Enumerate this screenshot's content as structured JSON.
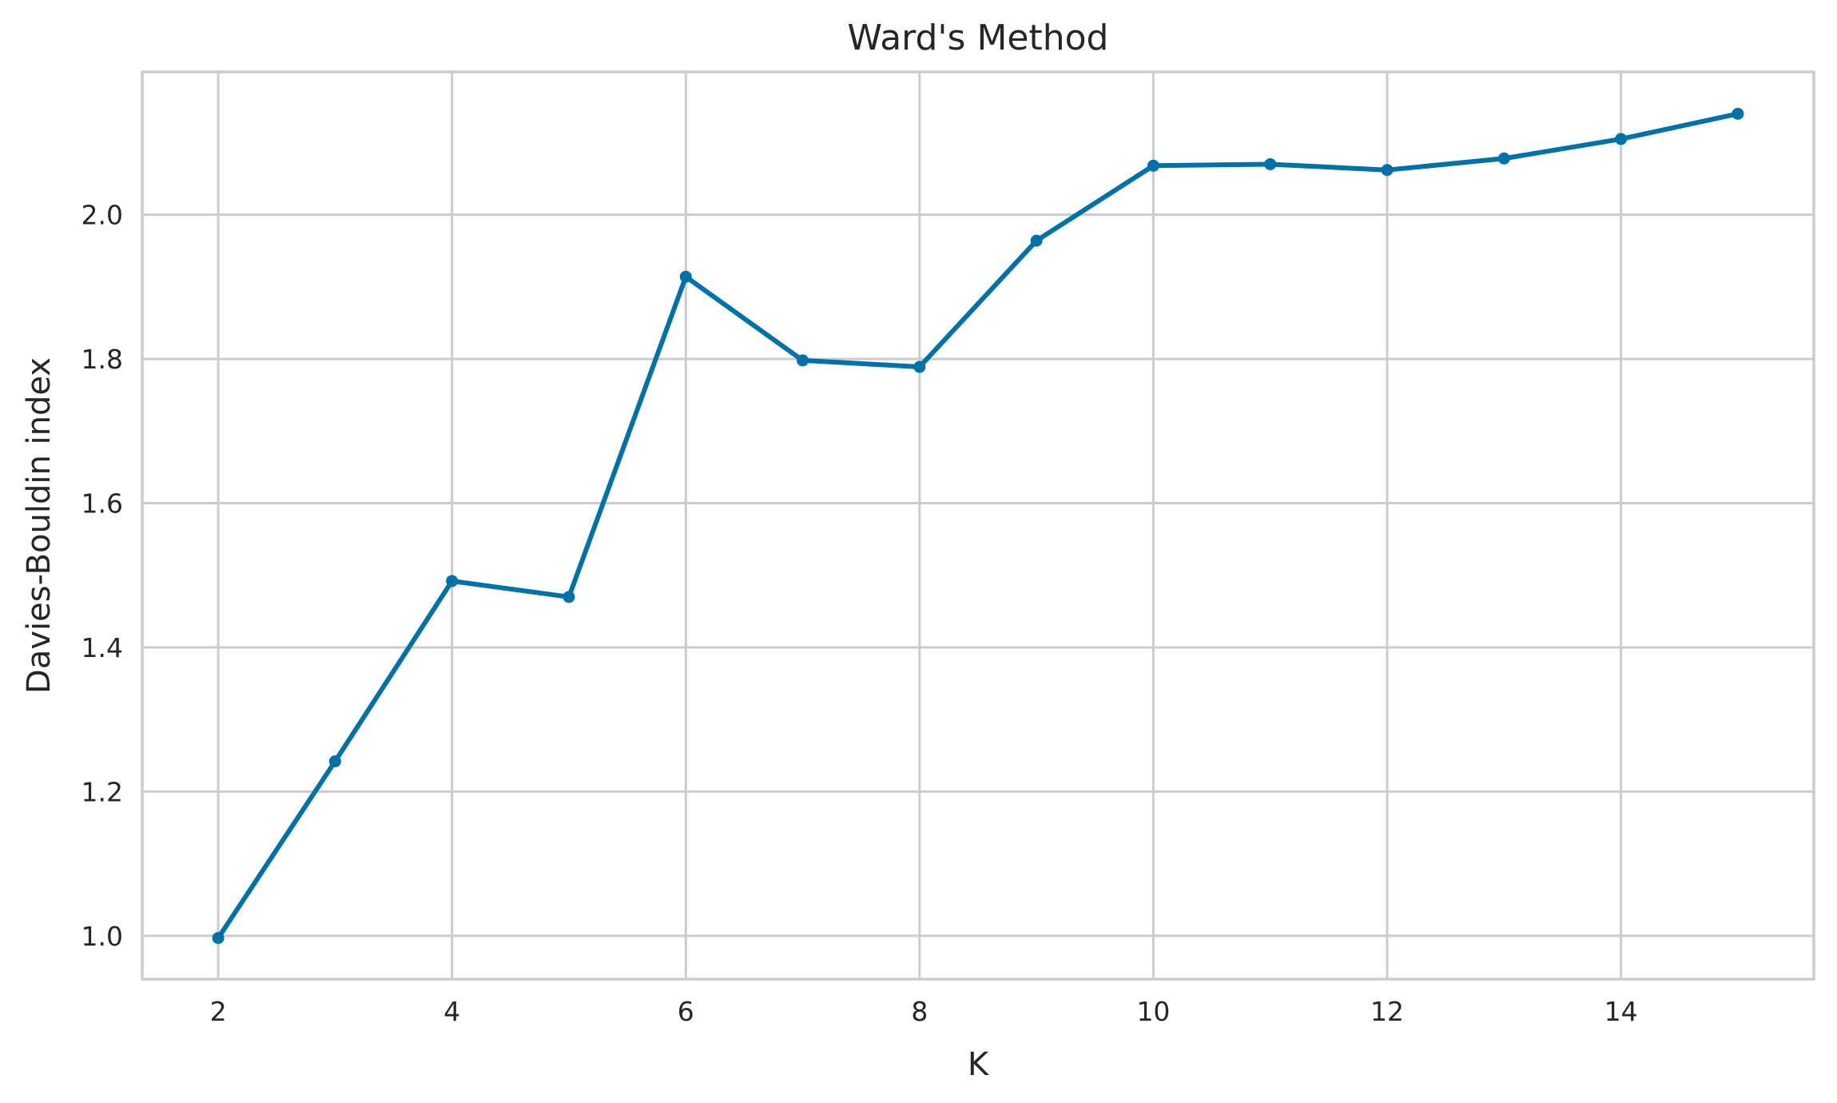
{
  "chart_data": {
    "type": "line",
    "title": "Ward's Method",
    "xlabel": "K",
    "ylabel": "Davies-Bouldin index",
    "x": [
      2,
      3,
      4,
      5,
      6,
      7,
      8,
      9,
      10,
      11,
      12,
      13,
      14,
      15
    ],
    "series": [
      {
        "values": [
          0.997,
          1.242,
          1.492,
          1.47,
          1.914,
          1.798,
          1.789,
          1.964,
          2.068,
          2.07,
          2.062,
          2.078,
          2.105,
          2.14
        ]
      }
    ],
    "xlim": [
      1.35,
      15.65
    ],
    "ylim": [
      0.94,
      2.198
    ],
    "xticks": [
      2,
      4,
      6,
      8,
      10,
      12,
      14
    ],
    "yticks": [
      1.0,
      1.2,
      1.4,
      1.6,
      1.8,
      2.0
    ],
    "ytick_labels": [
      "1.0",
      "1.2",
      "1.4",
      "1.6",
      "1.8",
      "2.0"
    ],
    "grid": true,
    "line_color": "#0072a8"
  }
}
